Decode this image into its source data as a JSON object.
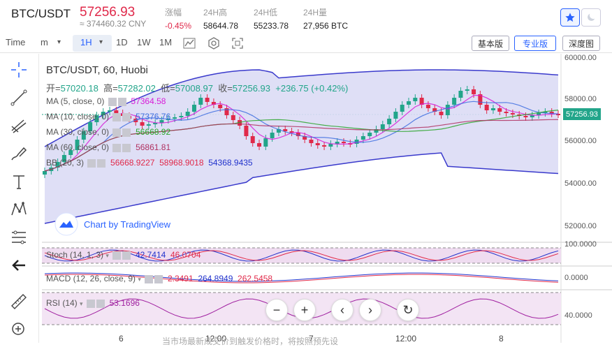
{
  "header": {
    "pair": "BTC/USDT",
    "price": "57256.93",
    "cny": "≈ 374460.32 CNY",
    "stats": [
      {
        "label": "涨幅",
        "value": "-0.45%",
        "neg": true
      },
      {
        "label": "24H高",
        "value": "58644.78"
      },
      {
        "label": "24H低",
        "value": "55233.78"
      },
      {
        "label": "24H量",
        "value": "27,956 BTC"
      }
    ]
  },
  "toolbar": {
    "time": "Time",
    "minute": "m",
    "hour": "1H",
    "intervals": [
      "1D",
      "1W",
      "1M"
    ],
    "views": [
      "基本版",
      "专业版",
      "深度图"
    ]
  },
  "chart": {
    "title": "BTC/USDT, 60, Huobi",
    "ohlc": {
      "o_label": "开=",
      "o": "57020.18",
      "h_label": "高=",
      "h": "57282.02",
      "l_label": "低=",
      "l": "57008.97",
      "c_label": "收=",
      "c": "57256.93",
      "chg": "+236.75 (+0.42%)"
    },
    "indicators": [
      {
        "name": "MA (5, close, 0)",
        "value": "57364.58",
        "color": "#d81bd8"
      },
      {
        "name": "MA (10, close, 0)",
        "value": "57376.76",
        "color": "#3f6fe0"
      },
      {
        "name": "MA (30, close, 0)",
        "value": "56668.92",
        "color": "#2aa52a"
      },
      {
        "name": "MA (60, close, 0)",
        "value": "56861.81",
        "color": "#b03060"
      },
      {
        "name": "BB (20, 3)",
        "values": [
          "56668.9227",
          "58968.9018",
          "54368.9435"
        ],
        "colors": [
          "#e0294a",
          "#e0294a",
          "#2233cc"
        ]
      }
    ],
    "price_tag": "57256.93",
    "y_labels": [
      "60000.00",
      "58000.00",
      "56000.00",
      "54000.00",
      "52000.00"
    ],
    "x_labels": [
      "6",
      "12:00",
      "7",
      "12:00",
      "8"
    ],
    "tv_logo": "Chart by TradingView"
  },
  "stoch": {
    "name": "Stoch (14, 1, 3)",
    "v1": "42.7414",
    "v2": "46.0704",
    "ylabel": "100.0000"
  },
  "macd": {
    "name": "MACD (12, 26, close, 9)",
    "v1": "2.3491",
    "v2": "264.8949",
    "v3": "262.5458",
    "ylabel": "0.0000"
  },
  "rsi": {
    "name": "RSI (14)",
    "v1": "53.1696",
    "ylabel": "40.0000"
  },
  "footer": "当市场最新成交价到触发价格时，将按照预先设"
}
